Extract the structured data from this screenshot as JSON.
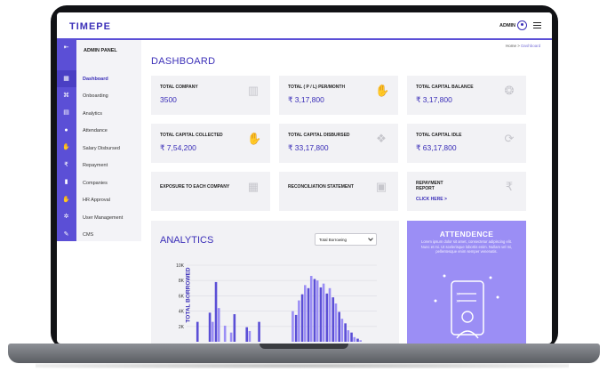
{
  "app": {
    "logo": "TIMEPE",
    "admin_label": "ADMIN"
  },
  "sidebar": {
    "panel_title": "ADMIN PANEL",
    "items": [
      {
        "label": "Dashboard",
        "icon": "grid-icon",
        "active": true
      },
      {
        "label": "Onboarding",
        "icon": "handshake-icon",
        "active": false
      },
      {
        "label": "Analytics",
        "icon": "chart-icon",
        "active": false
      },
      {
        "label": "Attendance",
        "icon": "person-icon",
        "active": false
      },
      {
        "label": "Salary Disbursed",
        "icon": "money-hand-icon",
        "active": false
      },
      {
        "label": "Repayment",
        "icon": "rupee-icon",
        "active": false
      },
      {
        "label": "Companies",
        "icon": "document-icon",
        "active": false
      },
      {
        "label": "HR Approval",
        "icon": "hand-icon",
        "active": false
      },
      {
        "label": "User Management",
        "icon": "gear-icon",
        "active": false
      },
      {
        "label": "CMS",
        "icon": "edit-icon",
        "active": false
      }
    ]
  },
  "breadcrumb": {
    "home": "Home",
    "separator": ">",
    "current": "Dashboard"
  },
  "page_title": "DASHBOARD",
  "cards": [
    {
      "label": "TOTAL COMPANY",
      "value": "3500",
      "icon": "building-icon"
    },
    {
      "label": "TOTAL   ( P / L) PER/MONTH",
      "value": "₹  3,17,800",
      "icon": "hand-coin-icon"
    },
    {
      "label": "TOTAL CAPITAL BALANCE",
      "value": "₹  3,17,800",
      "icon": "money-bag-icon"
    },
    {
      "label": "TOTAL CAPITAL COLLECTED",
      "value": "₹  7,54,200",
      "icon": "hand-money-icon"
    },
    {
      "label": "TOTAL CAPITAL DISBURSED",
      "value": "₹  33,17,800",
      "icon": "coins-icon"
    },
    {
      "label": "TOTAL CAPITAL IDLE",
      "value": "₹  63,17,800",
      "icon": "cycle-money-icon"
    },
    {
      "label": "EXPOSURE TO EACH COMPANY",
      "value": "",
      "icon": "building-icon"
    },
    {
      "label": "RECONCILIATION STATEMENT",
      "value": "",
      "icon": "statement-icon"
    },
    {
      "label": "REPAYMENT REPORT",
      "value": "",
      "icon": "rupee-cycle-icon",
      "link": "CLICK HERE >"
    }
  ],
  "analytics": {
    "title": "ANALYTICS",
    "select_value": "Total Borrowing"
  },
  "attendance": {
    "title": "ATTENDENCE",
    "text": "Lorem ipsum dolor sit amet, consectetur adipiscing elit. Nunc et mi. Ut scelerisque lobortis enim. Nullam vel mi, pellentesque enim semper venenatis."
  },
  "chart_data": {
    "type": "bar",
    "ylabel": "TOTAL BORROWED",
    "ylim": [
      0,
      10000
    ],
    "yticks": [
      "10K",
      "8K",
      "6K",
      "4K",
      "2K"
    ],
    "yticks_values": [
      10000,
      8000,
      6000,
      4000,
      2000
    ],
    "grid": true,
    "colors": [
      "#5b4fd6",
      "#9b8ef5"
    ],
    "series": [
      {
        "values": [
          0,
          2600,
          0,
          3800,
          7800,
          0,
          0,
          3600,
          0,
          1900,
          0,
          2600,
          0,
          0,
          0,
          0,
          0,
          3500,
          6200,
          7000,
          8200,
          7100,
          6300,
          5800,
          3900,
          2400,
          1200,
          400,
          0,
          0
        ]
      },
      {
        "values": [
          0,
          0,
          0,
          2600,
          4400,
          2100,
          1200,
          0,
          0,
          1400,
          0,
          0,
          0,
          0,
          0,
          0,
          4000,
          5400,
          7400,
          8600,
          8000,
          7600,
          7000,
          5000,
          3000,
          1500,
          600,
          200,
          0,
          0
        ]
      }
    ]
  }
}
